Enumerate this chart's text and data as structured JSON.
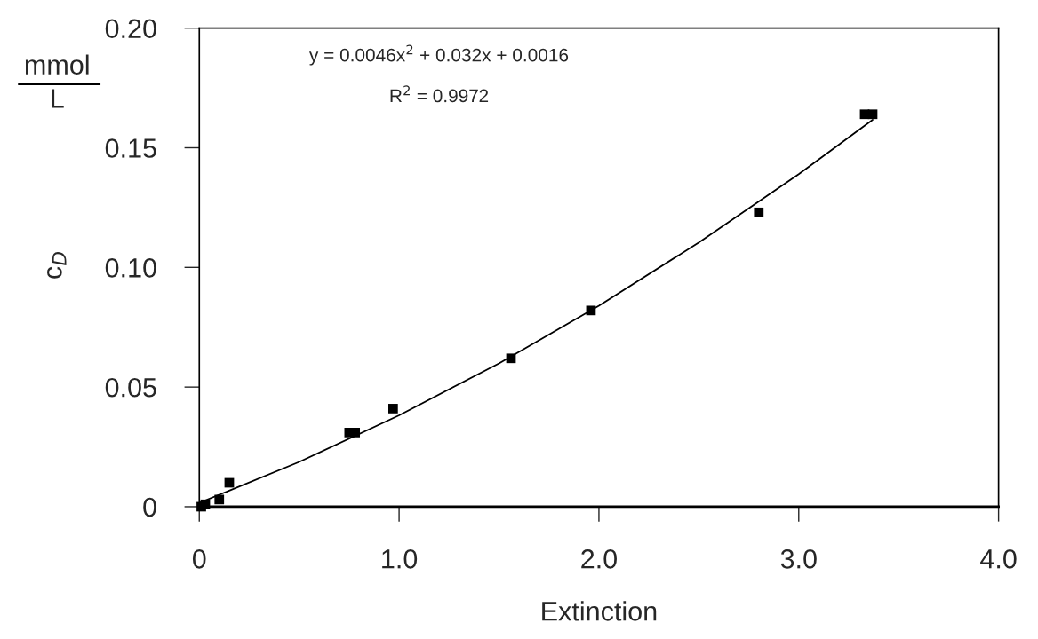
{
  "chart_data": {
    "type": "scatter",
    "xlabel": "Extinction",
    "ylabel": "c$_{D}$",
    "annotations": [
      "y = 0.0046x$^{2}$ + 0.032x + 0.0016",
      "R$^{2}$ = 0.9972",
      "mmol",
      "L"
    ],
    "series": [
      {
        "color": "#000000",
        "marker": "square",
        "x": [
          0.01,
          0.03,
          0.1,
          0.15,
          0.75,
          0.78,
          0.97,
          1.56,
          1.96,
          2.8,
          3.33,
          3.37
        ],
        "values": [
          0.0,
          0.001,
          0.003,
          0.01,
          0.031,
          0.031,
          0.041,
          0.062,
          0.082,
          0.123,
          0.164,
          0.164
        ]
      },
      {
        "type": "line",
        "color": "#000000",
        "marker": "none",
        "line_style": "solid",
        "x": [
          0,
          0.5,
          1.0,
          1.5,
          2.0,
          2.5,
          3.0,
          3.37
        ],
        "values": [
          0.0016,
          0.0187,
          0.0382,
          0.0599,
          0.084,
          0.1104,
          0.139,
          0.1617
        ]
      }
    ],
    "xlim": [
      0,
      4.0
    ],
    "xticks": [
      0,
      {
        "value": 1.0,
        "label": "1.0"
      },
      {
        "value": 2.0,
        "label": "2.0"
      },
      {
        "value": 3.0,
        "label": "3.0"
      },
      {
        "value": 4.0,
        "label": "4.0"
      }
    ],
    "ylim": [
      0,
      0.2
    ],
    "yticks": [
      0,
      0.05,
      {
        "value": 0.1,
        "label": "0.10"
      },
      0.15,
      {
        "value": 0.2,
        "label": "0.20"
      }
    ],
    "grid": false,
    "legend": false
  }
}
